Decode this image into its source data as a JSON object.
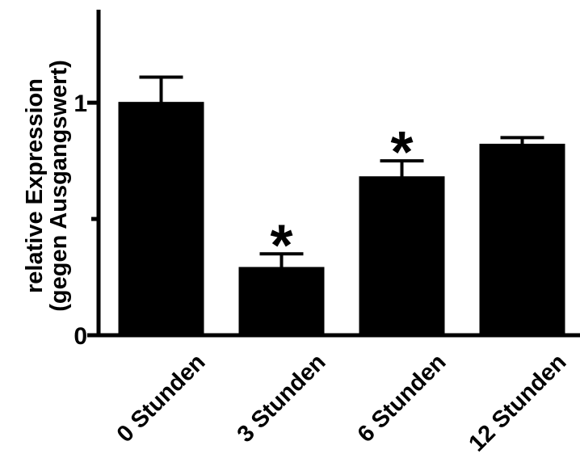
{
  "chart_data": {
    "type": "bar",
    "categories": [
      "0 Stunden",
      "3 Stunden",
      "6 Stunden",
      "12 Stunden"
    ],
    "values": [
      1.0,
      0.29,
      0.68,
      0.82
    ],
    "error_upper": [
      0.11,
      0.06,
      0.07,
      0.03
    ],
    "significance": [
      "",
      "*",
      "*",
      ""
    ],
    "ylabel": [
      "relative Expression",
      "(gegen Ausgangswert)"
    ],
    "ylim": [
      0,
      1.4
    ],
    "yticks": [
      0,
      1
    ],
    "yticks_minor": [
      0.5
    ],
    "grid": false,
    "bar_color": "#000000"
  }
}
